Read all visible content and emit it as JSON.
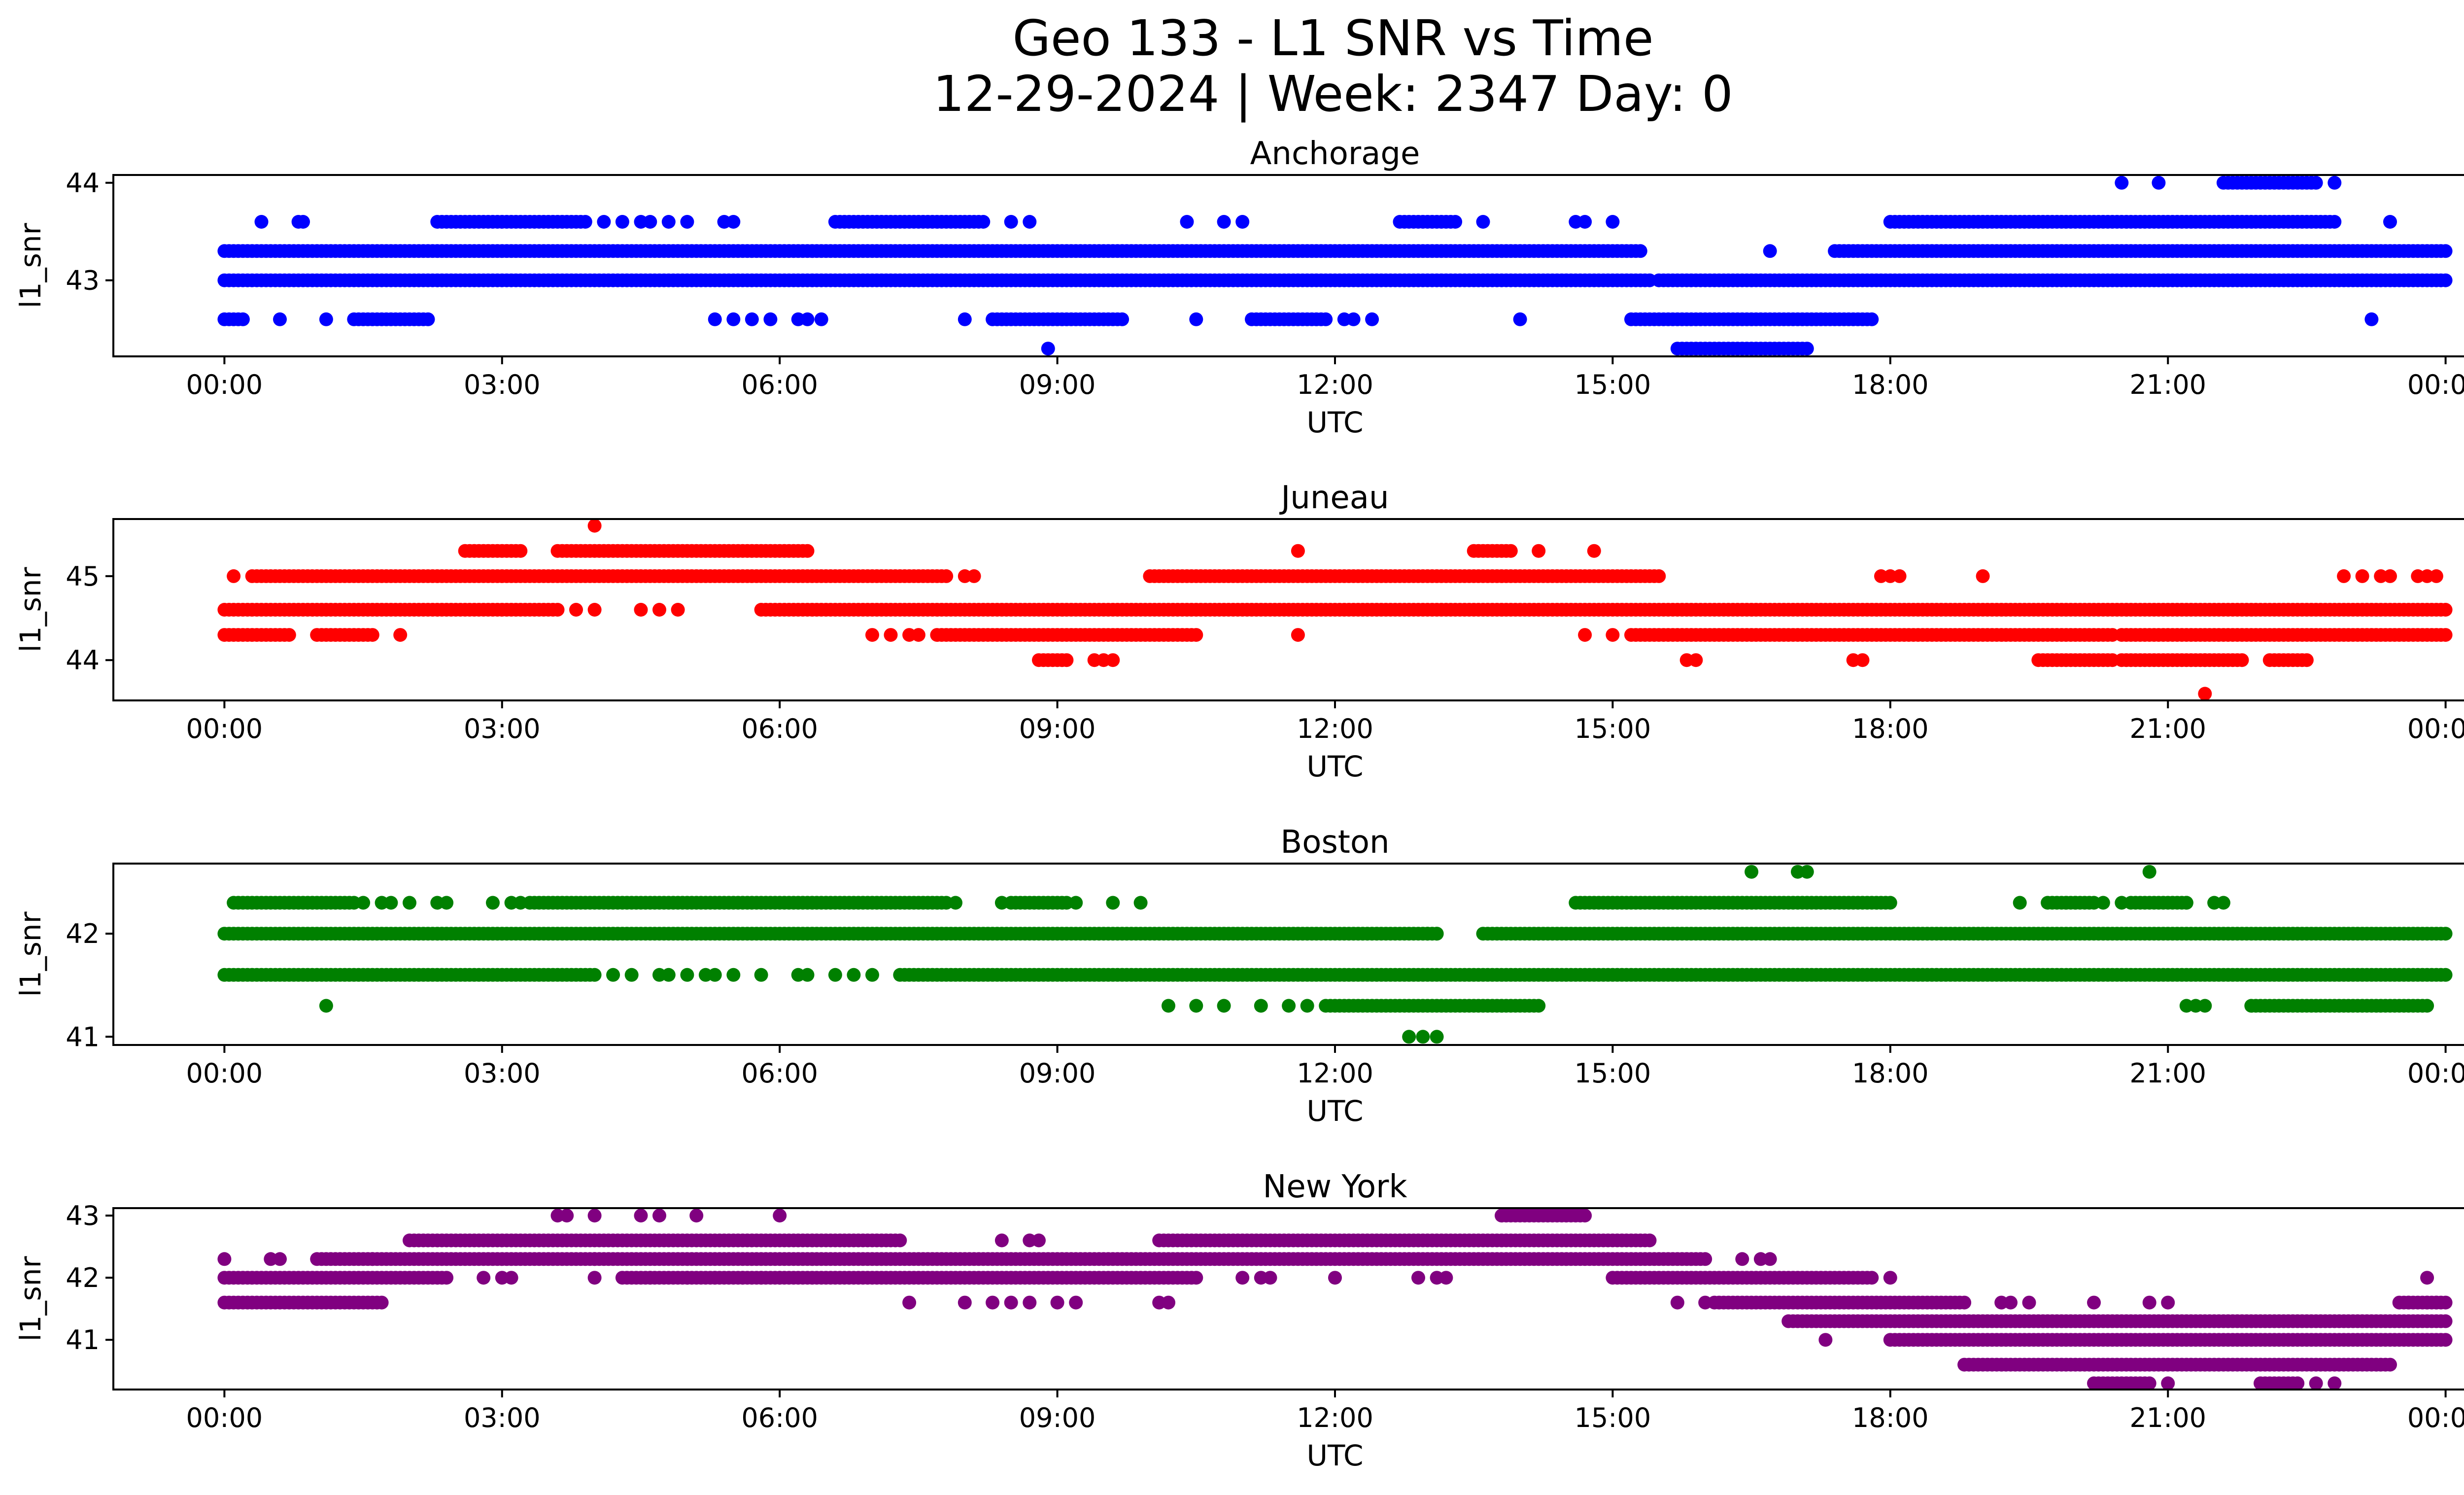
{
  "title_line1": "Geo 133 - L1 SNR vs Time",
  "title_line2": "12-29-2024 | Week: 2347 Day: 0",
  "x_ticks": [
    "00:00",
    "03:00",
    "06:00",
    "09:00",
    "12:00",
    "15:00",
    "18:00",
    "21:00",
    "00:00"
  ],
  "chart_data": [
    {
      "type": "scatter",
      "title": "Anchorage",
      "xlabel": "UTC",
      "ylabel": "l1_snr",
      "color": "#0000ff",
      "x_unit": "hours UTC",
      "xlim": [
        -1.2,
        25.2
      ],
      "ylim": [
        42.22,
        44.08
      ],
      "yticks": [
        43,
        44
      ],
      "levels": [
        42.3,
        42.6,
        43.0,
        43.3,
        43.6,
        44.0
      ],
      "segments": [
        {
          "y": 43.0,
          "x": [
            [
              0.0,
              15.4
            ],
            [
              15.5,
              24.0
            ]
          ]
        },
        {
          "y": 43.3,
          "x": [
            [
              0.0,
              15.3
            ],
            [
              17.4,
              24.0
            ]
          ]
        },
        {
          "y": 43.3,
          "points": [
            16.7
          ]
        },
        {
          "y": 43.6,
          "x": [
            [
              2.3,
              3.9
            ],
            [
              6.6,
              8.2
            ],
            [
              12.7,
              13.3
            ],
            [
              18.0,
              22.8
            ]
          ]
        },
        {
          "y": 43.6,
          "points": [
            0.4,
            0.8,
            0.85,
            4.1,
            4.3,
            4.5,
            4.6,
            4.8,
            5.0,
            5.4,
            5.5,
            8.5,
            8.7,
            10.4,
            10.8,
            11.0,
            13.6,
            14.6,
            14.7,
            15.0,
            23.4
          ]
        },
        {
          "y": 42.6,
          "x": [
            [
              0.0,
              0.2
            ],
            [
              1.4,
              2.2
            ],
            [
              8.3,
              9.7
            ],
            [
              11.1,
              11.9
            ],
            [
              15.2,
              17.8
            ]
          ]
        },
        {
          "y": 42.6,
          "points": [
            0.6,
            1.1,
            5.3,
            5.5,
            5.7,
            5.9,
            6.2,
            6.3,
            6.45,
            8.0,
            10.5,
            12.1,
            12.2,
            12.4,
            14.0,
            23.2
          ]
        },
        {
          "y": 42.3,
          "x": [
            [
              15.7,
              17.1
            ]
          ]
        },
        {
          "y": 42.3,
          "points": [
            8.9
          ]
        },
        {
          "y": 44.0,
          "x": [
            [
              21.6,
              22.6
            ]
          ]
        },
        {
          "y": 44.0,
          "points": [
            20.5,
            20.9,
            22.8
          ]
        }
      ]
    },
    {
      "type": "scatter",
      "title": "Juneau",
      "xlabel": "UTC",
      "ylabel": "l1_snr",
      "color": "#ff0000",
      "x_unit": "hours UTC",
      "xlim": [
        -1.2,
        25.2
      ],
      "ylim": [
        43.52,
        45.68
      ],
      "yticks": [
        44,
        45
      ],
      "levels": [
        43.6,
        44.0,
        44.3,
        44.6,
        45.0,
        45.3,
        45.6
      ],
      "segments": [
        {
          "y": 45.0,
          "x": [
            [
              0.3,
              7.8
            ],
            [
              10.0,
              15.5
            ]
          ]
        },
        {
          "y": 45.0,
          "points": [
            0.1,
            8.0,
            8.1,
            17.9,
            18.0,
            18.1,
            19.0,
            22.9,
            23.1,
            23.3,
            23.4,
            23.7,
            23.8,
            23.9
          ]
        },
        {
          "y": 44.6,
          "x": [
            [
              0.0,
              3.6
            ],
            [
              5.8,
              24.0
            ]
          ]
        },
        {
          "y": 44.6,
          "points": [
            3.8,
            4.0,
            4.5,
            4.7,
            4.9
          ]
        },
        {
          "y": 44.3,
          "x": [
            [
              0.0,
              0.7
            ],
            [
              1.0,
              1.6
            ],
            [
              7.7,
              10.5
            ],
            [
              15.2,
              20.4
            ],
            [
              20.5,
              24.0
            ]
          ]
        },
        {
          "y": 44.3,
          "points": [
            1.9,
            7.0,
            7.2,
            7.4,
            7.5,
            11.6,
            14.7,
            15.0
          ]
        },
        {
          "y": 45.3,
          "x": [
            [
              2.6,
              3.2
            ],
            [
              3.6,
              6.3
            ],
            [
              13.5,
              13.9
            ]
          ]
        },
        {
          "y": 45.3,
          "points": [
            11.6,
            14.2,
            14.8
          ]
        },
        {
          "y": 45.6,
          "points": [
            4.0
          ]
        },
        {
          "y": 44.0,
          "x": [
            [
              8.8,
              9.1
            ],
            [
              19.6,
              20.4
            ],
            [
              20.5,
              21.8
            ],
            [
              22.1,
              22.5
            ]
          ]
        },
        {
          "y": 44.0,
          "points": [
            9.4,
            9.5,
            9.6,
            15.8,
            15.9,
            17.6,
            17.7,
            21.4
          ]
        },
        {
          "y": 43.6,
          "points": [
            21.4
          ]
        }
      ]
    },
    {
      "type": "scatter",
      "title": "Boston",
      "xlabel": "UTC",
      "ylabel": "l1_snr",
      "color": "#008000",
      "x_unit": "hours UTC",
      "xlim": [
        -1.2,
        25.2
      ],
      "ylim": [
        40.92,
        42.68
      ],
      "yticks": [
        41,
        42
      ],
      "levels": [
        41.0,
        41.3,
        41.6,
        42.0,
        42.3,
        42.6
      ],
      "segments": [
        {
          "y": 42.0,
          "x": [
            [
              0.0,
              13.1
            ],
            [
              13.6,
              24.0
            ]
          ]
        },
        {
          "y": 42.0,
          "points": [
            13.0,
            13.1
          ]
        },
        {
          "y": 41.6,
          "x": [
            [
              0.0,
              4.0
            ],
            [
              7.3,
              24.0
            ]
          ]
        },
        {
          "y": 41.6,
          "points": [
            4.2,
            4.4,
            4.7,
            4.8,
            5.0,
            5.2,
            5.3,
            5.5,
            5.8,
            6.2,
            6.3,
            6.6,
            6.8,
            7.0
          ]
        },
        {
          "y": 42.3,
          "x": [
            [
              0.1,
              1.4
            ],
            [
              3.3,
              7.8
            ],
            [
              8.5,
              9.1
            ],
            [
              14.6,
              18.0
            ]
          ]
        },
        {
          "y": 42.3,
          "points": [
            1.5,
            1.7,
            1.8,
            2.0,
            2.3,
            2.4,
            2.9,
            3.1,
            3.2,
            7.9,
            8.4,
            9.2,
            9.6,
            9.9,
            19.4,
            19.9,
            20.0,
            20.3,
            20.5,
            21.2,
            21.5,
            21.6
          ]
        },
        {
          "y": 42.3,
          "x": [
            [
              19.7,
              20.2
            ],
            [
              20.6,
              21.2
            ]
          ]
        },
        {
          "y": 41.3,
          "x": [
            [
              11.9,
              14.2
            ],
            [
              21.9,
              23.8
            ]
          ]
        },
        {
          "y": 41.3,
          "points": [
            1.1,
            10.2,
            10.5,
            10.8,
            11.2,
            11.5,
            11.7,
            21.2,
            21.3,
            21.4
          ]
        },
        {
          "y": 41.0,
          "points": [
            12.8,
            12.95,
            13.1
          ]
        },
        {
          "y": 42.6,
          "points": [
            16.5,
            17.0,
            17.1,
            20.8
          ]
        }
      ]
    },
    {
      "type": "scatter",
      "title": "New York",
      "xlabel": "UTC",
      "ylabel": "l1_snr",
      "color": "#800080",
      "x_unit": "hours UTC",
      "xlim": [
        -1.2,
        25.2
      ],
      "ylim": [
        40.2,
        43.12
      ],
      "yticks": [
        41,
        42,
        43
      ],
      "levels": [
        40.3,
        40.6,
        41.0,
        41.3,
        41.6,
        42.0,
        42.3,
        42.6,
        43.0
      ],
      "segments": [
        {
          "y": 42.3,
          "x": [
            [
              1.0,
              1.6
            ],
            [
              1.6,
              4.0
            ],
            [
              4.0,
              16.0
            ]
          ]
        },
        {
          "y": 42.3,
          "points": [
            0.0,
            0.5,
            0.6,
            16.4,
            16.6,
            16.7
          ]
        },
        {
          "y": 42.0,
          "x": [
            [
              0.0,
              2.4
            ],
            [
              4.3,
              10.5
            ],
            [
              15.0,
              17.8
            ]
          ]
        },
        {
          "y": 42.0,
          "points": [
            2.8,
            3.0,
            3.1,
            4.0,
            4.6,
            5.0,
            5.3,
            5.6,
            5.8,
            6.0,
            11.0,
            11.2,
            11.3,
            12.0,
            12.9,
            13.1,
            13.2,
            18.0
          ]
        },
        {
          "y": 41.6,
          "x": [
            [
              0.0,
              1.7
            ],
            [
              16.1,
              18.8
            ]
          ]
        },
        {
          "y": 41.6,
          "points": [
            7.4,
            8.0,
            8.3,
            8.5,
            8.7,
            9.0,
            9.2,
            10.1,
            10.2,
            15.7,
            16.0,
            19.2,
            19.3,
            19.5,
            20.2,
            20.8,
            21.0,
            23.6,
            23.8,
            23.9
          ]
        },
        {
          "y": 41.6,
          "x": [
            [
              23.5,
              24.0
            ]
          ]
        },
        {
          "y": 42.6,
          "x": [
            [
              2.0,
              7.3
            ],
            [
              10.1,
              15.4
            ]
          ]
        },
        {
          "y": 42.6,
          "points": [
            8.4,
            8.7,
            8.8
          ]
        },
        {
          "y": 43.0,
          "x": [
            [
              13.8,
              14.7
            ]
          ]
        },
        {
          "y": 43.0,
          "points": [
            3.6,
            3.7,
            4.0,
            4.5,
            4.7,
            5.1,
            6.0
          ]
        },
        {
          "y": 41.3,
          "x": [
            [
              16.9,
              24.0
            ]
          ]
        },
        {
          "y": 41.0,
          "x": [
            [
              18.0,
              24.0
            ]
          ]
        },
        {
          "y": 41.0,
          "points": [
            17.3
          ]
        },
        {
          "y": 40.6,
          "x": [
            [
              18.8,
              23.4
            ]
          ]
        },
        {
          "y": 40.3,
          "x": [
            [
              20.2,
              20.8
            ],
            [
              22.0,
              22.4
            ]
          ]
        },
        {
          "y": 40.3,
          "points": [
            21.0,
            22.6,
            22.8
          ]
        },
        {
          "y": 42.0,
          "points": [
            23.8
          ]
        }
      ]
    }
  ]
}
